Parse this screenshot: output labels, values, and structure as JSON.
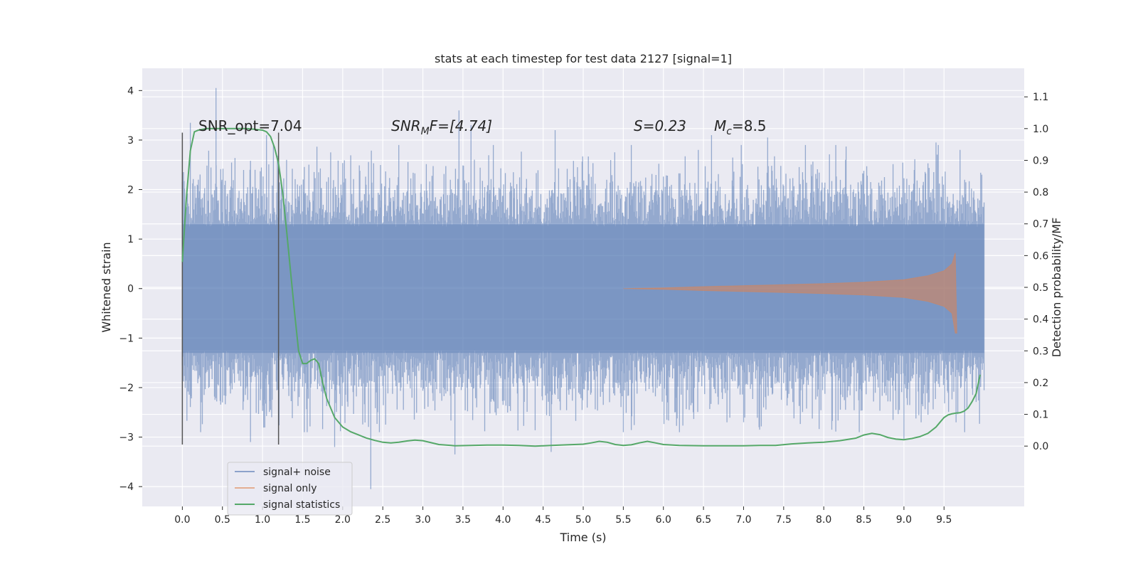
{
  "chart_data": {
    "type": "line",
    "title": "stats at each timestep for test data 2127 [signal=1]",
    "xlabel": "Time (s)",
    "ylabel_left": "Whitened strain",
    "ylabel_right": "Detection probability/MF",
    "xlim": [
      -0.5,
      10.5
    ],
    "ylim_left": [
      -4.4,
      4.45
    ],
    "ylim_right": [
      -0.19,
      1.19
    ],
    "x_ticks": [
      0.0,
      0.5,
      1.0,
      1.5,
      2.0,
      2.5,
      3.0,
      3.5,
      4.0,
      4.5,
      5.0,
      5.5,
      6.0,
      6.5,
      7.0,
      7.5,
      8.0,
      8.5,
      9.0,
      9.5
    ],
    "x_tick_labels": [
      "0.0",
      "0.5",
      "1.0",
      "1.5",
      "2.0",
      "2.5",
      "3.0",
      "3.5",
      "4.0",
      "4.5",
      "5.0",
      "5.5",
      "6.0",
      "6.5",
      "7.0",
      "7.5",
      "8.0",
      "8.5",
      "9.0",
      "9.5"
    ],
    "y_left_ticks": [
      4,
      3,
      2,
      1,
      0,
      -1,
      -2,
      -3,
      -4
    ],
    "y_left_tick_labels": [
      "4",
      "3",
      "2",
      "1",
      "0",
      "−1",
      "−2",
      "−3",
      "−4"
    ],
    "y_right_ticks": [
      1.1,
      1.0,
      0.9,
      0.8,
      0.7,
      0.6,
      0.5,
      0.4,
      0.3,
      0.2,
      0.1,
      0.0
    ],
    "y_right_tick_labels": [
      "1.1",
      "1.0",
      "0.9",
      "0.8",
      "0.7",
      "0.6",
      "0.5",
      "0.4",
      "0.3",
      "0.2",
      "0.1",
      "0.0"
    ],
    "grid": true,
    "legend_position": "lower-left",
    "annotations": {
      "snr_opt": "SNR_opt=7.04",
      "snr_mf_base": "SNR",
      "snr_mf_sub": "M",
      "snr_mf_tail": "F=[4.74]",
      "s_stat": "S=0.23",
      "mc_base": "M",
      "mc_sub": "c",
      "mc_tail": "=8.5"
    },
    "vertical_markers": [
      0.0,
      1.2
    ],
    "vertical_marker_range": [
      -3.15,
      3.15
    ],
    "series": [
      {
        "name": "signal+ noise",
        "axis": "left",
        "color": "#4c72b0",
        "x_range": [
          0.0,
          10.0
        ],
        "typical_range": [
          -1.3,
          1.3
        ],
        "peaks": [
          [
            0.1,
            3.35
          ],
          [
            0.2,
            2.2
          ],
          [
            0.42,
            4.05
          ],
          [
            0.5,
            -2.3
          ],
          [
            0.85,
            -3.1
          ],
          [
            1.05,
            3.1
          ],
          [
            1.3,
            2.6
          ],
          [
            1.9,
            -3.2
          ],
          [
            2.35,
            -4.05
          ],
          [
            2.7,
            2.9
          ],
          [
            3.4,
            -3.35
          ],
          [
            3.45,
            3.6
          ],
          [
            3.6,
            3.3
          ],
          [
            4.6,
            -3.3
          ],
          [
            4.65,
            3.2
          ],
          [
            5.5,
            -2.9
          ],
          [
            5.6,
            2.9
          ],
          [
            6.2,
            -2.9
          ],
          [
            6.6,
            3.1
          ],
          [
            7.2,
            -2.85
          ],
          [
            7.3,
            3.05
          ],
          [
            8.1,
            -2.85
          ],
          [
            8.15,
            2.9
          ],
          [
            9.0,
            -3.05
          ],
          [
            9.4,
            2.95
          ],
          [
            9.65,
            -2.7
          ],
          [
            9.7,
            2.8
          ]
        ]
      },
      {
        "name": "signal only",
        "axis": "left",
        "color": "#dd8452",
        "envelope": [
          [
            5.5,
            0.0
          ],
          [
            6.0,
            0.015
          ],
          [
            6.5,
            0.04
          ],
          [
            7.0,
            0.06
          ],
          [
            7.5,
            0.08
          ],
          [
            8.0,
            0.1
          ],
          [
            8.5,
            0.13
          ],
          [
            9.0,
            0.18
          ],
          [
            9.3,
            0.26
          ],
          [
            9.5,
            0.36
          ],
          [
            9.6,
            0.5
          ],
          [
            9.64,
            0.72
          ],
          [
            9.66,
            -0.9
          ]
        ]
      },
      {
        "name": "signal statistics",
        "axis": "right",
        "color": "#55a868",
        "x": [
          0.0,
          0.05,
          0.1,
          0.15,
          0.2,
          0.3,
          0.4,
          0.5,
          0.6,
          0.7,
          0.8,
          0.9,
          1.0,
          1.05,
          1.1,
          1.15,
          1.2,
          1.25,
          1.3,
          1.35,
          1.4,
          1.45,
          1.5,
          1.55,
          1.6,
          1.65,
          1.7,
          1.75,
          1.8,
          1.9,
          2.0,
          2.1,
          2.2,
          2.3,
          2.4,
          2.5,
          2.6,
          2.7,
          2.8,
          2.9,
          3.0,
          3.2,
          3.4,
          3.6,
          3.8,
          4.0,
          4.2,
          4.4,
          4.6,
          4.8,
          5.0,
          5.1,
          5.2,
          5.3,
          5.4,
          5.5,
          5.6,
          5.7,
          5.8,
          5.9,
          6.0,
          6.2,
          6.5,
          6.8,
          7.0,
          7.2,
          7.4,
          7.6,
          7.8,
          8.0,
          8.2,
          8.4,
          8.5,
          8.6,
          8.7,
          8.8,
          8.9,
          9.0,
          9.1,
          9.2,
          9.3,
          9.4,
          9.45,
          9.5,
          9.55,
          9.6,
          9.65,
          9.7,
          9.75,
          9.8,
          9.85,
          9.9,
          9.95
        ],
        "y": [
          0.58,
          0.78,
          0.93,
          0.99,
          0.995,
          1.0,
          1.0,
          1.0,
          1.0,
          1.0,
          1.0,
          0.998,
          0.995,
          0.99,
          0.975,
          0.94,
          0.89,
          0.8,
          0.68,
          0.55,
          0.42,
          0.3,
          0.26,
          0.26,
          0.27,
          0.275,
          0.26,
          0.2,
          0.15,
          0.09,
          0.06,
          0.045,
          0.035,
          0.025,
          0.018,
          0.012,
          0.01,
          0.012,
          0.016,
          0.019,
          0.017,
          0.005,
          0.001,
          0.002,
          0.003,
          0.003,
          0.002,
          0.0,
          0.002,
          0.004,
          0.006,
          0.01,
          0.015,
          0.012,
          0.005,
          0.002,
          0.004,
          0.01,
          0.015,
          0.01,
          0.005,
          0.002,
          0.001,
          0.001,
          0.001,
          0.002,
          0.002,
          0.007,
          0.01,
          0.012,
          0.017,
          0.025,
          0.035,
          0.04,
          0.036,
          0.027,
          0.022,
          0.02,
          0.024,
          0.03,
          0.04,
          0.06,
          0.075,
          0.09,
          0.098,
          0.102,
          0.104,
          0.105,
          0.11,
          0.12,
          0.14,
          0.165,
          0.225
        ]
      }
    ]
  }
}
